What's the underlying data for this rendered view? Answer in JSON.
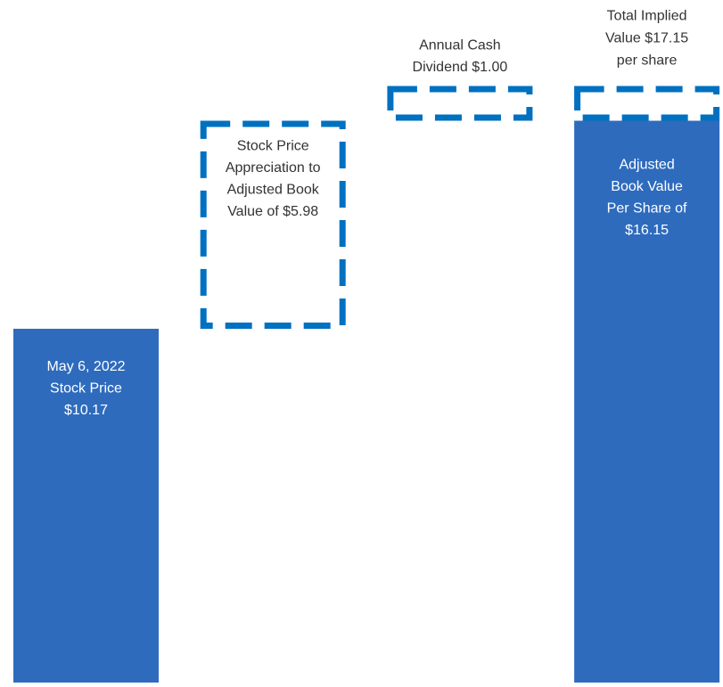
{
  "chart_data": {
    "type": "waterfall",
    "categories": [
      null,
      null,
      null,
      null
    ],
    "series": [
      {
        "style": "solid",
        "color": "#2e6bbd",
        "values": [
          10.17,
          null,
          null,
          16.15
        ]
      },
      {
        "style": "dashed",
        "color": "#0070c0",
        "values": [
          null,
          5.98,
          1.0,
          1.0
        ]
      }
    ],
    "labels": [
      [
        "May 6, 2022",
        "Stock Price",
        "$10.17"
      ],
      [
        "Stock Price",
        "Appreciation to",
        "Adjusted Book",
        "Value of $5.98"
      ],
      [
        "Annual Cash",
        "Dividend $1.00"
      ],
      [
        "Adjusted",
        "Book Value",
        "Per Share of",
        "$16.15"
      ]
    ],
    "total": 17.15,
    "total_label": [
      "Total Implied",
      "Value $17.15",
      "per share"
    ]
  }
}
